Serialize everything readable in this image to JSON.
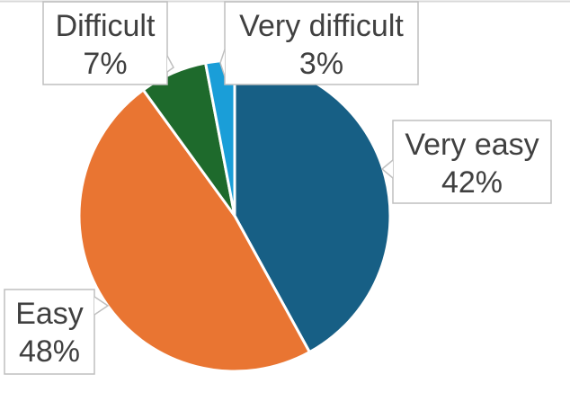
{
  "chart_data": {
    "type": "pie",
    "title": "",
    "slices": [
      {
        "label": "Very easy",
        "value": 42,
        "value_label": "42%",
        "color": "#175f85"
      },
      {
        "label": "Easy",
        "value": 48,
        "value_label": "48%",
        "color": "#e97532"
      },
      {
        "label": "Difficult",
        "value": 7,
        "value_label": "7%",
        "color": "#1e6a2c"
      },
      {
        "label": "Very difficult",
        "value": 3,
        "value_label": "3%",
        "color": "#1a9ed8"
      }
    ]
  }
}
